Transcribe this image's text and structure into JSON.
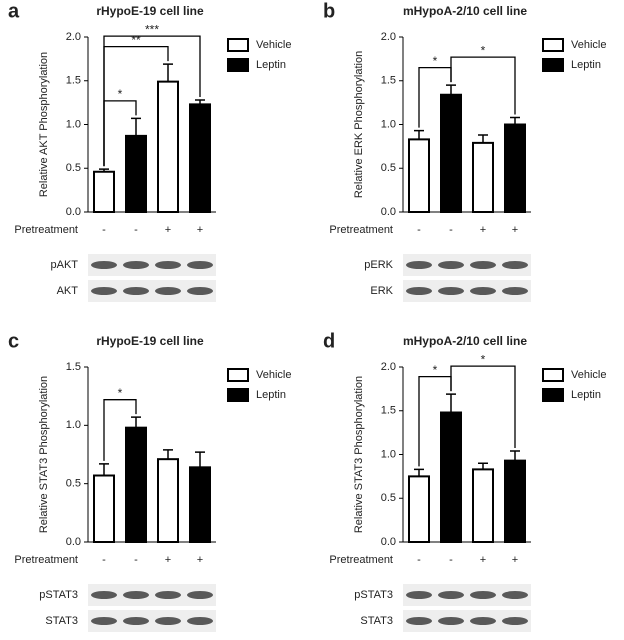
{
  "chart_data": [
    {
      "type": "bar",
      "letter": "a",
      "title": "rHypoE-19 cell line",
      "y_label": "Relative AKT Phosphorylation",
      "x_label": "Pretreatment",
      "categories": [
        "-",
        "-",
        "+",
        "+"
      ],
      "series": [
        {
          "name": "Vehicle",
          "color": "#ffffff",
          "values": [
            0.46,
            null,
            1.49,
            null
          ],
          "errors": [
            0.03,
            null,
            0.2,
            null
          ]
        },
        {
          "name": "Leptin",
          "color": "#000000",
          "values": [
            null,
            0.87,
            null,
            1.23
          ],
          "errors": [
            null,
            0.2,
            null,
            0.05
          ]
        }
      ],
      "ylim": [
        0,
        2
      ],
      "yticks": [
        {
          "value": 0,
          "label": "0.0"
        },
        0.5,
        {
          "value": 1,
          "label": "1.0"
        },
        1.5,
        {
          "value": 2,
          "label": "2.0"
        }
      ],
      "annotations": [
        {
          "label": "*",
          "from": 0,
          "to": 1
        },
        {
          "label": "**",
          "from": 0,
          "to": 2
        },
        {
          "label": "***",
          "from": 0,
          "to": 3
        }
      ],
      "blot_labels": [
        "pAKT",
        "AKT"
      ]
    },
    {
      "type": "bar",
      "letter": "b",
      "title": "mHypoA-2/10 cell line",
      "y_label": "Relative ERK Phosphorylation",
      "x_label": "Pretreatment",
      "categories": [
        "-",
        "-",
        "+",
        "+"
      ],
      "series": [
        {
          "name": "Vehicle",
          "color": "#ffffff",
          "values": [
            0.83,
            null,
            0.79,
            null
          ],
          "errors": [
            0.1,
            null,
            0.09,
            null
          ]
        },
        {
          "name": "Leptin",
          "color": "#000000",
          "values": [
            null,
            1.34,
            null,
            1.0
          ],
          "errors": [
            null,
            0.11,
            null,
            0.08
          ]
        }
      ],
      "ylim": [
        0,
        2
      ],
      "yticks": [
        {
          "value": 0,
          "label": "0.0"
        },
        0.5,
        {
          "value": 1,
          "label": "1.0"
        },
        1.5,
        {
          "value": 2,
          "label": "2.0"
        }
      ],
      "annotations": [
        {
          "label": "*",
          "from": 0,
          "to": 1
        },
        {
          "label": "*",
          "from": 1,
          "to": 3
        }
      ],
      "blot_labels": [
        "pERK",
        "ERK"
      ]
    },
    {
      "type": "bar",
      "letter": "c",
      "title": "rHypoE-19 cell line",
      "y_label": "Relative STAT3 Phosphorylation",
      "x_label": "Pretreatment",
      "categories": [
        "-",
        "-",
        "+",
        "+"
      ],
      "series": [
        {
          "name": "Vehicle",
          "color": "#ffffff",
          "values": [
            0.57,
            null,
            0.71,
            null
          ],
          "errors": [
            0.1,
            null,
            0.08,
            null
          ]
        },
        {
          "name": "Leptin",
          "color": "#000000",
          "values": [
            null,
            0.98,
            null,
            0.64
          ],
          "errors": [
            null,
            0.09,
            null,
            0.13
          ]
        }
      ],
      "ylim": [
        0,
        1.5
      ],
      "yticks": [
        {
          "value": 0,
          "label": "0.0"
        },
        0.5,
        {
          "value": 1,
          "label": "1.0"
        },
        1.5
      ],
      "annotations": [
        {
          "label": "*",
          "from": 0,
          "to": 1
        }
      ],
      "blot_labels": [
        "pSTAT3",
        "STAT3"
      ]
    },
    {
      "type": "bar",
      "letter": "d",
      "title": "mHypoA-2/10 cell line",
      "y_label": "Relative STAT3 Phosphorylation",
      "x_label": "Pretreatment",
      "categories": [
        "-",
        "-",
        "+",
        "+"
      ],
      "series": [
        {
          "name": "Vehicle",
          "color": "#ffffff",
          "values": [
            0.75,
            null,
            0.83,
            null
          ],
          "errors": [
            0.08,
            null,
            0.07,
            null
          ]
        },
        {
          "name": "Leptin",
          "color": "#000000",
          "values": [
            null,
            1.48,
            null,
            0.93
          ],
          "errors": [
            null,
            0.21,
            null,
            0.11
          ]
        }
      ],
      "ylim": [
        0,
        2
      ],
      "yticks": [
        {
          "value": 0,
          "label": "0.0"
        },
        0.5,
        {
          "value": 1,
          "label": "1.0"
        },
        1.5,
        {
          "value": 2,
          "label": "2.0"
        }
      ],
      "annotations": [
        {
          "label": "*",
          "from": 0,
          "to": 1
        },
        {
          "label": "*",
          "from": 1,
          "to": 3
        }
      ],
      "blot_labels": [
        "pSTAT3",
        "STAT3"
      ]
    }
  ]
}
